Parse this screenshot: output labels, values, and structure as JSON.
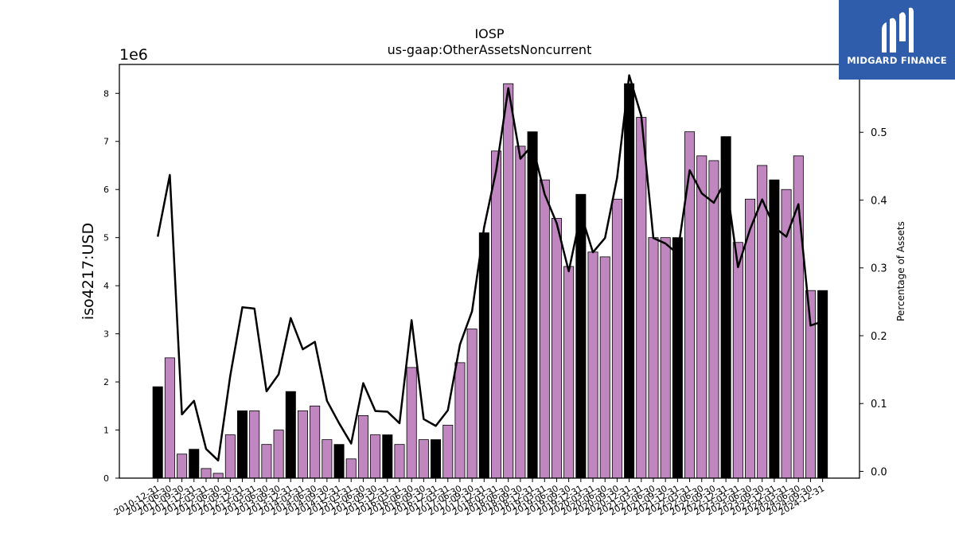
{
  "chart_data": {
    "type": "bar",
    "title": "IOSP",
    "subtitle": "us-gaap:OtherAssetsNoncurrent",
    "ylabel": "iso4217:USD",
    "ylabel_right": "Percentage of Assets",
    "y_scale_label": "1e6",
    "ylim": [
      0,
      8.6
    ],
    "ylim_right": [
      -0.01,
      0.6
    ],
    "y_ticks": [
      "0",
      "1",
      "2",
      "3",
      "4",
      "5",
      "6",
      "7",
      "8"
    ],
    "y_ticks_right": [
      "0.0",
      "0.1",
      "0.2",
      "0.3",
      "0.4",
      "0.5"
    ],
    "categories": [
      "2010-12-31",
      "2011-06-30",
      "2011-09-30",
      "2011-12-31",
      "2012-03-31",
      "2012-06-30",
      "2012-09-30",
      "2012-12-31",
      "2013-03-31",
      "2013-06-30",
      "2013-09-30",
      "2013-12-31",
      "2014-03-31",
      "2014-06-30",
      "2014-09-30",
      "2014-12-31",
      "2015-03-31",
      "2015-06-30",
      "2015-09-30",
      "2015-12-31",
      "2016-03-31",
      "2016-06-30",
      "2016-09-30",
      "2016-12-31",
      "2017-03-31",
      "2017-06-30",
      "2017-09-30",
      "2017-12-31",
      "2018-03-31",
      "2018-06-30",
      "2018-09-30",
      "2018-12-31",
      "2019-03-31",
      "2019-06-30",
      "2019-09-30",
      "2019-12-31",
      "2020-03-31",
      "2020-06-30",
      "2020-09-30",
      "2020-12-31",
      "2021-03-31",
      "2021-06-30",
      "2021-09-30",
      "2021-12-31",
      "2022-03-31",
      "2022-06-30",
      "2022-09-30",
      "2022-12-31",
      "2023-03-31",
      "2023-06-30",
      "2023-09-30",
      "2023-12-31",
      "2024-03-31",
      "2024-06-30",
      "2024-09-30",
      "2024-12-31"
    ],
    "series": [
      {
        "values": [
          1.9,
          2.5,
          0.5,
          0.6,
          0.2,
          0.1,
          0.9,
          1.4,
          1.4,
          0.7,
          1.0,
          1.8,
          1.4,
          1.5,
          0.8,
          0.7,
          0.4,
          1.3,
          0.9,
          0.9,
          0.7,
          2.3,
          0.8,
          0.8,
          1.1,
          2.4,
          3.1,
          5.1,
          6.8,
          8.2,
          6.9,
          7.2,
          6.2,
          5.4,
          4.4,
          5.9,
          4.7,
          4.6,
          5.8,
          8.2,
          7.5,
          5.0,
          5.0,
          5.0,
          7.2,
          6.7,
          6.6,
          7.1,
          4.9,
          5.8,
          6.5,
          6.2,
          6.0,
          6.7,
          3.9,
          3.9
        ],
        "highlight": [
          true,
          false,
          false,
          true,
          false,
          false,
          false,
          true,
          false,
          false,
          false,
          true,
          false,
          false,
          false,
          true,
          false,
          false,
          false,
          true,
          false,
          false,
          false,
          true,
          false,
          false,
          false,
          true,
          false,
          false,
          false,
          true,
          false,
          false,
          false,
          true,
          false,
          false,
          false,
          true,
          false,
          false,
          false,
          true,
          false,
          false,
          false,
          true,
          false,
          false,
          false,
          true,
          false,
          false,
          false,
          true
        ]
      },
      {
        "axis": "right",
        "values": [
          0.346,
          0.437,
          0.084,
          0.104,
          0.033,
          0.016,
          0.141,
          0.242,
          0.24,
          0.118,
          0.143,
          0.226,
          0.18,
          0.191,
          0.104,
          0.071,
          0.041,
          0.13,
          0.089,
          0.088,
          0.071,
          0.223,
          0.077,
          0.067,
          0.09,
          0.187,
          0.236,
          0.36,
          0.444,
          0.565,
          0.461,
          0.481,
          0.409,
          0.366,
          0.295,
          0.38,
          0.323,
          0.344,
          0.433,
          0.584,
          0.524,
          0.344,
          0.336,
          0.321,
          0.444,
          0.41,
          0.396,
          0.43,
          0.301,
          0.357,
          0.401,
          0.36,
          0.346,
          0.394,
          0.215,
          0.221
        ]
      }
    ],
    "colors": {
      "bar": "#bf86c0",
      "bar_highlight": "#000000",
      "line": "#000000"
    }
  },
  "logo": {
    "text": "MIDGARD FINANCE"
  }
}
